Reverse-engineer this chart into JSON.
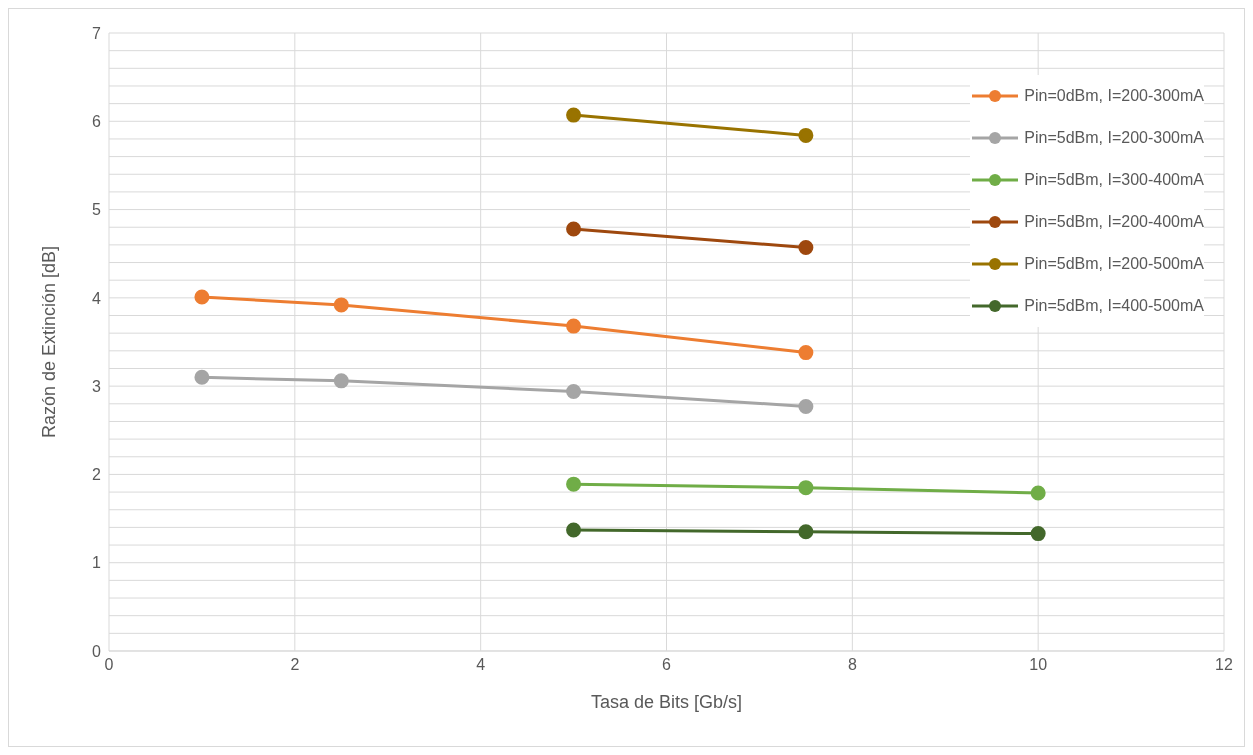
{
  "chart_data": {
    "type": "line",
    "xlabel": "Tasa de Bits [Gb/s]",
    "ylabel": "Razón de Extinción [dB]",
    "xlim": [
      0,
      12
    ],
    "xticks": [
      0,
      2,
      4,
      6,
      8,
      10,
      12
    ],
    "ylim": [
      0,
      7
    ],
    "yticks": [
      0,
      {
        "value": 0.2,
        "label": null
      },
      {
        "value": 0.4,
        "label": null
      },
      {
        "value": 0.6,
        "label": null
      },
      {
        "value": 0.8,
        "label": null
      },
      1,
      {
        "value": 1.2,
        "label": null
      },
      {
        "value": 1.4,
        "label": null
      },
      {
        "value": 1.6,
        "label": null
      },
      {
        "value": 1.8,
        "label": null
      },
      2,
      {
        "value": 2.2,
        "label": null
      },
      {
        "value": 2.4,
        "label": null
      },
      {
        "value": 2.6,
        "label": null
      },
      {
        "value": 2.8,
        "label": null
      },
      3,
      {
        "value": 3.2,
        "label": null
      },
      {
        "value": 3.4,
        "label": null
      },
      {
        "value": 3.6,
        "label": null
      },
      {
        "value": 3.8,
        "label": null
      },
      4,
      {
        "value": 4.2,
        "label": null
      },
      {
        "value": 4.4,
        "label": null
      },
      {
        "value": 4.6,
        "label": null
      },
      {
        "value": 4.8,
        "label": null
      },
      5,
      {
        "value": 5.2,
        "label": null
      },
      {
        "value": 5.4,
        "label": null
      },
      {
        "value": 5.6,
        "label": null
      },
      {
        "value": 5.8,
        "label": null
      },
      6,
      {
        "value": 6.2,
        "label": null
      },
      {
        "value": 6.4,
        "label": null
      },
      {
        "value": 6.6,
        "label": null
      },
      {
        "value": 6.8,
        "label": null
      },
      7
    ],
    "grid": true,
    "legend": "top right",
    "marker": "circle",
    "line_style": "solid",
    "series": [
      {
        "name": "Pin=0dBm, I=200-300mA",
        "color": "#ed7d31",
        "x": [
          1,
          2.5,
          5,
          7.5
        ],
        "values": [
          4.01,
          3.92,
          3.68,
          3.38
        ]
      },
      {
        "name": "Pin=5dBm, I=200-300mA",
        "color": "#a5a5a5",
        "x": [
          1,
          2.5,
          5,
          7.5
        ],
        "values": [
          3.1,
          3.06,
          2.94,
          2.77
        ]
      },
      {
        "name": "Pin=5dBm, I=300-400mA",
        "color": "#70ad47",
        "x": [
          5,
          7.5,
          10
        ],
        "values": [
          1.89,
          1.85,
          1.79
        ]
      },
      {
        "name": "Pin=5dBm, I=200-400mA",
        "color": "#9e480e",
        "x": [
          5,
          7.5
        ],
        "values": [
          4.78,
          4.57
        ]
      },
      {
        "name": "Pin=5dBm, I=200-500mA",
        "color": "#997300",
        "x": [
          5,
          7.5
        ],
        "values": [
          6.07,
          5.84
        ]
      },
      {
        "name": "Pin=5dBm, I=400-500mA",
        "color": "#43682b",
        "x": [
          5,
          7.5,
          10
        ],
        "values": [
          1.37,
          1.35,
          1.33
        ]
      }
    ]
  }
}
